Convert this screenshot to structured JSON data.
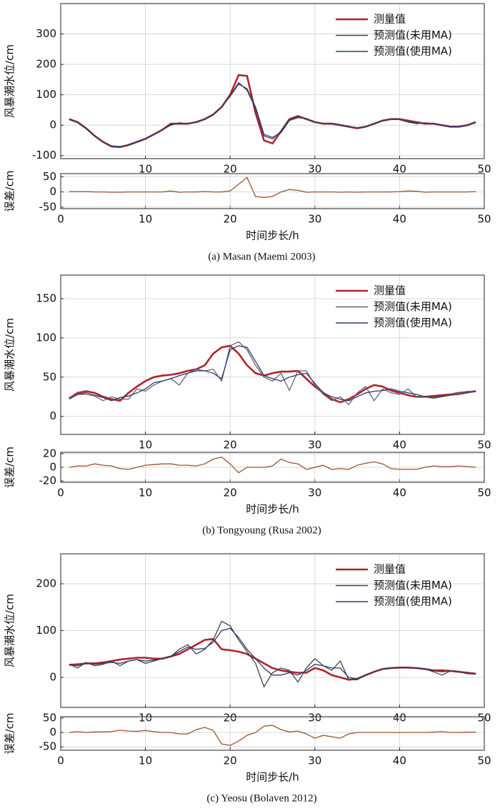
{
  "chart_data": [
    {
      "type": "line",
      "ylabel": "风暴潮水位/cm",
      "legend": "upper right",
      "grid": true,
      "x": [
        1,
        2,
        3,
        4,
        5,
        6,
        7,
        8,
        9,
        10,
        11,
        12,
        13,
        14,
        15,
        16,
        17,
        18,
        19,
        20,
        21,
        22,
        23,
        24,
        25,
        26,
        27,
        28,
        29,
        30,
        31,
        32,
        33,
        34,
        35,
        36,
        37,
        38,
        39,
        40,
        41,
        42,
        43,
        44,
        45,
        46,
        47,
        48,
        49
      ],
      "xlim": [
        0,
        50
      ],
      "xticks": [
        10,
        20,
        30,
        40,
        50
      ],
      "ylim": [
        -110,
        400
      ],
      "yticks": [
        -100,
        0,
        100,
        200,
        300
      ],
      "series": [
        {
          "name": "测量值",
          "color": "#b0242a",
          "values": [
            20,
            10,
            -10,
            -35,
            -55,
            -70,
            -72,
            -65,
            -55,
            -45,
            -30,
            -15,
            5,
            5,
            5,
            10,
            20,
            35,
            60,
            100,
            165,
            162,
            40,
            -50,
            -60,
            -20,
            20,
            30,
            20,
            10,
            5,
            5,
            0,
            -5,
            -10,
            -5,
            5,
            15,
            20,
            20,
            15,
            10,
            5,
            5,
            0,
            -5,
            -5,
            0,
            10
          ]
        },
        {
          "name": "预测值(未用MA)",
          "color": "#444444",
          "values": [
            18,
            8,
            -12,
            -35,
            -55,
            -68,
            -70,
            -66,
            -56,
            -45,
            -30,
            -15,
            0,
            8,
            5,
            10,
            18,
            35,
            60,
            95,
            135,
            120,
            60,
            -30,
            -40,
            -25,
            15,
            25,
            22,
            10,
            5,
            5,
            2,
            -5,
            -8,
            -5,
            5,
            15,
            20,
            18,
            10,
            5,
            8,
            5,
            0,
            -5,
            -5,
            0,
            8
          ]
        },
        {
          "name": "预测值(使用MA)",
          "color": "#2b3a78",
          "values": [
            19,
            9,
            -11,
            -35,
            -55,
            -69,
            -71,
            -65,
            -55,
            -45,
            -30,
            -15,
            2,
            6,
            5,
            10,
            19,
            35,
            60,
            97,
            140,
            115,
            55,
            -35,
            -45,
            -20,
            18,
            27,
            21,
            10,
            5,
            5,
            1,
            -5,
            -9,
            -5,
            5,
            15,
            20,
            19,
            12,
            8,
            6,
            5,
            0,
            -5,
            -5,
            0,
            9
          ]
        }
      ]
    },
    {
      "type": "line",
      "ylabel": "误差/cm",
      "xlabel": "时间步长/h",
      "caption": "(a) Masan (Maemi 2003)",
      "grid": true,
      "x": [
        1,
        2,
        3,
        4,
        5,
        6,
        7,
        8,
        9,
        10,
        11,
        12,
        13,
        14,
        15,
        16,
        17,
        18,
        19,
        20,
        21,
        22,
        23,
        24,
        25,
        26,
        27,
        28,
        29,
        30,
        31,
        32,
        33,
        34,
        35,
        36,
        37,
        38,
        39,
        40,
        41,
        42,
        43,
        44,
        45,
        46,
        47,
        48,
        49
      ],
      "xlim": [
        0,
        50
      ],
      "xticks": [
        0,
        10,
        20,
        30,
        40,
        50
      ],
      "ylim": [
        -55,
        60
      ],
      "yticks": [
        -50,
        0,
        50
      ],
      "series": [
        {
          "color": "#a0522d",
          "values": [
            1,
            1,
            1,
            0,
            0,
            -1,
            -1,
            0,
            0,
            0,
            0,
            0,
            3,
            -1,
            0,
            0,
            1,
            0,
            0,
            3,
            25,
            47,
            -15,
            -18,
            -15,
            0,
            8,
            5,
            -1,
            0,
            0,
            0,
            -1,
            0,
            -1,
            0,
            0,
            0,
            0,
            1,
            3,
            2,
            -1,
            0,
            0,
            0,
            0,
            0,
            1
          ]
        }
      ]
    },
    {
      "type": "line",
      "ylabel": "风暴潮水位/cm",
      "legend": "upper right",
      "grid": true,
      "x": [
        1,
        2,
        3,
        4,
        5,
        6,
        7,
        8,
        9,
        10,
        11,
        12,
        13,
        14,
        15,
        16,
        17,
        18,
        19,
        20,
        21,
        22,
        23,
        24,
        25,
        26,
        27,
        28,
        29,
        30,
        31,
        32,
        33,
        34,
        35,
        36,
        37,
        38,
        39,
        40,
        41,
        42,
        43,
        44,
        45,
        46,
        47,
        48,
        49
      ],
      "xlim": [
        0,
        50
      ],
      "xticks": [
        10,
        20,
        30,
        40,
        50
      ],
      "ylim": [
        -23,
        180
      ],
      "yticks": [
        0,
        50,
        100,
        150
      ],
      "series": [
        {
          "name": "测量值",
          "color": "#b0242a",
          "values": [
            23,
            30,
            32,
            30,
            25,
            22,
            20,
            30,
            38,
            45,
            50,
            52,
            53,
            55,
            58,
            60,
            65,
            80,
            88,
            90,
            80,
            65,
            55,
            52,
            55,
            57,
            57,
            58,
            48,
            38,
            30,
            22,
            18,
            22,
            28,
            35,
            40,
            38,
            33,
            30,
            27,
            25,
            25,
            26,
            27,
            28,
            30,
            31,
            32
          ]
        },
        {
          "name": "预测值(未用MA)",
          "color": "#666666",
          "values": [
            23,
            28,
            28,
            26,
            20,
            25,
            22,
            22,
            35,
            32,
            40,
            45,
            48,
            40,
            55,
            60,
            58,
            60,
            45,
            90,
            95,
            85,
            65,
            50,
            45,
            55,
            33,
            58,
            58,
            40,
            28,
            20,
            25,
            15,
            30,
            38,
            20,
            35,
            30,
            28,
            35,
            25,
            25,
            23,
            25,
            27,
            30,
            32,
            32
          ]
        },
        {
          "name": "预测值(使用MA)",
          "color": "#2b3a78",
          "values": [
            22,
            28,
            30,
            27,
            24,
            20,
            24,
            26,
            30,
            35,
            43,
            45,
            48,
            52,
            55,
            58,
            58,
            55,
            48,
            85,
            90,
            88,
            70,
            52,
            48,
            45,
            50,
            53,
            55,
            42,
            30,
            25,
            22,
            20,
            25,
            30,
            32,
            33,
            35,
            32,
            30,
            28,
            25,
            24,
            26,
            27,
            28,
            30,
            32
          ]
        }
      ]
    },
    {
      "type": "line",
      "ylabel": "误差/cm",
      "xlabel": "时间步长/h",
      "caption": "(b) Tongyoung (Rusa 2002)",
      "grid": true,
      "x": [
        1,
        2,
        3,
        4,
        5,
        6,
        7,
        8,
        9,
        10,
        11,
        12,
        13,
        14,
        15,
        16,
        17,
        18,
        19,
        20,
        21,
        22,
        23,
        24,
        25,
        26,
        27,
        28,
        29,
        30,
        31,
        32,
        33,
        34,
        35,
        36,
        37,
        38,
        39,
        40,
        41,
        42,
        43,
        44,
        45,
        46,
        47,
        48,
        49
      ],
      "xlim": [
        0,
        50
      ],
      "xticks": [
        0,
        10,
        20,
        30,
        40,
        50
      ],
      "ylim": [
        -22,
        22
      ],
      "yticks": [
        -20,
        0,
        20
      ],
      "series": [
        {
          "color": "#a0522d",
          "values": [
            0,
            2,
            2,
            5,
            3,
            2,
            -2,
            -3,
            0,
            3,
            4,
            5,
            5,
            3,
            3,
            2,
            5,
            12,
            15,
            5,
            -8,
            0,
            0,
            0,
            2,
            12,
            7,
            5,
            -3,
            0,
            3,
            -3,
            -2,
            -3,
            3,
            6,
            8,
            5,
            -2,
            -3,
            -3,
            -3,
            0,
            2,
            1,
            1,
            2,
            1,
            0
          ]
        }
      ]
    },
    {
      "type": "line",
      "ylabel": "风暴潮水位/cm",
      "legend": "upper right",
      "grid": true,
      "x": [
        1,
        2,
        3,
        4,
        5,
        6,
        7,
        8,
        9,
        10,
        11,
        12,
        13,
        14,
        15,
        16,
        17,
        18,
        19,
        20,
        21,
        22,
        23,
        24,
        25,
        26,
        27,
        28,
        29,
        30,
        31,
        32,
        33,
        34,
        35,
        36,
        37,
        38,
        39,
        40,
        41,
        42,
        43,
        44,
        45,
        46,
        47,
        48,
        49
      ],
      "xlim": [
        0,
        50
      ],
      "xticks": [
        10,
        20,
        30,
        40,
        50
      ],
      "ylim": [
        -64,
        264
      ],
      "yticks": [
        0,
        100,
        200
      ],
      "series": [
        {
          "name": "测量值",
          "color": "#b0242a",
          "values": [
            27,
            28,
            30,
            30,
            32,
            35,
            38,
            40,
            42,
            42,
            40,
            40,
            45,
            50,
            60,
            70,
            80,
            82,
            60,
            58,
            55,
            50,
            40,
            30,
            20,
            15,
            12,
            10,
            10,
            20,
            15,
            5,
            0,
            -5,
            -3,
            5,
            12,
            18,
            20,
            21,
            21,
            20,
            18,
            15,
            15,
            14,
            12,
            10,
            8
          ]
        },
        {
          "name": "预测值(未用MA)",
          "color": "#444444",
          "values": [
            28,
            20,
            32,
            25,
            28,
            35,
            25,
            35,
            38,
            30,
            35,
            40,
            45,
            60,
            70,
            50,
            60,
            80,
            120,
            110,
            80,
            55,
            30,
            -20,
            10,
            20,
            15,
            -10,
            20,
            40,
            25,
            15,
            35,
            -5,
            -5,
            5,
            12,
            18,
            20,
            21,
            20,
            20,
            18,
            12,
            5,
            14,
            12,
            8,
            7
          ]
        },
        {
          "name": "预测值(使用MA)",
          "color": "#2b3a78",
          "values": [
            27,
            25,
            30,
            28,
            30,
            32,
            30,
            35,
            38,
            35,
            37,
            40,
            45,
            55,
            65,
            60,
            62,
            75,
            100,
            105,
            85,
            60,
            40,
            20,
            5,
            5,
            10,
            5,
            15,
            28,
            25,
            20,
            20,
            0,
            -3,
            5,
            12,
            18,
            20,
            21,
            21,
            20,
            18,
            14,
            12,
            14,
            12,
            9,
            7
          ]
        }
      ]
    },
    {
      "type": "line",
      "ylabel": "误差/cm",
      "xlabel": "时间步长/h",
      "caption": "(c) Yeosu (Bolaven 2012)",
      "grid": true,
      "x": [
        1,
        2,
        3,
        4,
        5,
        6,
        7,
        8,
        9,
        10,
        11,
        12,
        13,
        14,
        15,
        16,
        17,
        18,
        19,
        20,
        21,
        22,
        23,
        24,
        25,
        26,
        27,
        28,
        29,
        30,
        31,
        32,
        33,
        34,
        35,
        36,
        37,
        38,
        39,
        40,
        41,
        42,
        43,
        44,
        45,
        46,
        47,
        48,
        49
      ],
      "xlim": [
        0,
        50
      ],
      "xticks": [
        0,
        10,
        20,
        30,
        40,
        50
      ],
      "ylim": [
        -62,
        55
      ],
      "yticks": [
        -50,
        0,
        50
      ],
      "series": [
        {
          "color": "#a0522d",
          "values": [
            0,
            3,
            0,
            2,
            2,
            3,
            8,
            5,
            4,
            7,
            3,
            0,
            0,
            -5,
            -5,
            10,
            18,
            7,
            -40,
            -45,
            -30,
            -10,
            0,
            22,
            25,
            10,
            2,
            5,
            -5,
            -20,
            -10,
            -15,
            -20,
            -5,
            0,
            0,
            0,
            0,
            0,
            0,
            0,
            0,
            0,
            1,
            3,
            0,
            0,
            1,
            1
          ]
        }
      ]
    }
  ]
}
